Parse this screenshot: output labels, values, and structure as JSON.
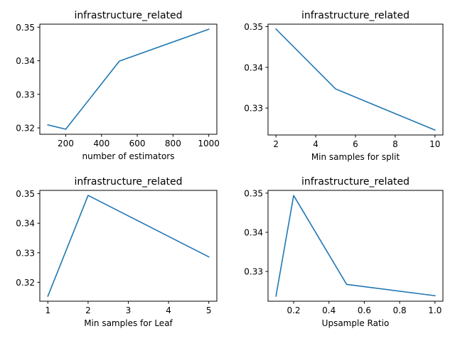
{
  "chart_data": [
    {
      "type": "line",
      "title": "infrastructure_related",
      "xlabel": "number of estimators",
      "ylabel": "",
      "x": [
        100,
        200,
        500,
        1000
      ],
      "series": [
        {
          "values": [
            0.3209,
            0.3196,
            0.3399,
            0.3494
          ]
        }
      ],
      "xlim": [
        55,
        1045
      ],
      "ylim": [
        0.3181,
        0.3509
      ],
      "xticks": [
        200,
        400,
        600,
        800,
        1000
      ],
      "xtick_labels": [
        "200",
        "400",
        "600",
        "800",
        "1000"
      ],
      "yticks": [
        0.32,
        0.33,
        0.34,
        0.35
      ],
      "ytick_labels": [
        "0.32",
        "0.33",
        "0.34",
        "0.35"
      ],
      "grid": false,
      "color": "#1f77b4"
    },
    {
      "type": "line",
      "title": "infrastructure_related",
      "xlabel": "Min samples for split",
      "ylabel": "",
      "x": [
        2,
        5,
        10
      ],
      "series": [
        {
          "values": [
            0.3494,
            0.3347,
            0.3246
          ]
        }
      ],
      "xlim": [
        1.6,
        10.4
      ],
      "ylim": [
        0.3234,
        0.3506
      ],
      "xticks": [
        2,
        4,
        6,
        8,
        10
      ],
      "xtick_labels": [
        "2",
        "4",
        "6",
        "8",
        "10"
      ],
      "yticks": [
        0.33,
        0.34,
        0.35
      ],
      "ytick_labels": [
        "0.33",
        "0.34",
        "0.35"
      ],
      "grid": false,
      "color": "#1f77b4"
    },
    {
      "type": "line",
      "title": "infrastructure_related",
      "xlabel": "Min samples for Leaf",
      "ylabel": "",
      "x": [
        1,
        2,
        5
      ],
      "series": [
        {
          "values": [
            0.3153,
            0.3494,
            0.3286
          ]
        }
      ],
      "xlim": [
        0.8,
        5.2
      ],
      "ylim": [
        0.3136,
        0.3511
      ],
      "xticks": [
        1,
        2,
        3,
        4,
        5
      ],
      "xtick_labels": [
        "1",
        "2",
        "3",
        "4",
        "5"
      ],
      "yticks": [
        0.32,
        0.33,
        0.34,
        0.35
      ],
      "ytick_labels": [
        "0.32",
        "0.33",
        "0.34",
        "0.35"
      ],
      "grid": false,
      "color": "#1f77b4"
    },
    {
      "type": "line",
      "title": "infrastructure_related",
      "xlabel": "Upsample Ratio",
      "ylabel": "",
      "x": [
        0.1,
        0.2,
        0.5,
        1.0
      ],
      "series": [
        {
          "values": [
            0.3237,
            0.3494,
            0.3267,
            0.3238
          ]
        }
      ],
      "xlim": [
        0.055,
        1.045
      ],
      "ylim": [
        0.3224,
        0.3507
      ],
      "xticks": [
        0.2,
        0.4,
        0.6,
        0.8,
        1.0
      ],
      "xtick_labels": [
        "0.2",
        "0.4",
        "0.6",
        "0.8",
        "1.0"
      ],
      "yticks": [
        0.33,
        0.34,
        0.35
      ],
      "ytick_labels": [
        "0.33",
        "0.34",
        "0.35"
      ],
      "grid": false,
      "color": "#1f77b4"
    }
  ]
}
